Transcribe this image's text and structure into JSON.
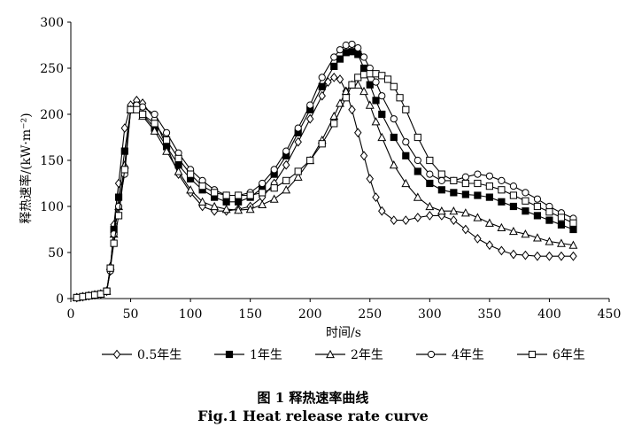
{
  "chart_data": {
    "type": "line",
    "title": "",
    "xlabel": "时间/s",
    "ylabel": "释热速率/(kW·m⁻²)",
    "xlim": [
      0,
      450
    ],
    "ylim": [
      0,
      300
    ],
    "xticks": [
      "0",
      "50",
      "100",
      "150",
      "200",
      "250",
      "300",
      "350",
      "400",
      "450"
    ],
    "yticks": [
      "0",
      "50",
      "100",
      "150",
      "200",
      "250",
      "300"
    ],
    "grid": false,
    "legend_position": "bottom",
    "series": [
      {
        "name": "0.5年生",
        "marker": "diamond",
        "x": [
          5,
          10,
          15,
          20,
          25,
          30,
          33,
          36,
          40,
          45,
          50,
          55,
          60,
          70,
          80,
          90,
          100,
          110,
          120,
          130,
          140,
          150,
          160,
          170,
          180,
          190,
          200,
          210,
          215,
          220,
          225,
          230,
          235,
          240,
          245,
          250,
          255,
          260,
          270,
          280,
          290,
          300,
          310,
          320,
          330,
          340,
          350,
          360,
          370,
          380,
          390,
          400,
          410,
          420
        ],
        "y": [
          1,
          2,
          3,
          4,
          5,
          8,
          30,
          80,
          125,
          185,
          210,
          215,
          212,
          195,
          165,
          135,
          115,
          100,
          95,
          95,
          97,
          100,
          110,
          125,
          145,
          170,
          195,
          220,
          235,
          240,
          238,
          225,
          205,
          180,
          155,
          130,
          110,
          95,
          85,
          85,
          88,
          90,
          90,
          85,
          75,
          65,
          58,
          52,
          48,
          47,
          46,
          46,
          46,
          46
        ]
      },
      {
        "name": "1年生",
        "marker": "square-filled",
        "x": [
          5,
          10,
          15,
          20,
          25,
          30,
          33,
          36,
          40,
          45,
          50,
          55,
          60,
          70,
          80,
          90,
          100,
          110,
          120,
          130,
          140,
          150,
          160,
          170,
          180,
          190,
          200,
          210,
          220,
          225,
          230,
          235,
          240,
          245,
          250,
          255,
          260,
          270,
          280,
          290,
          300,
          310,
          320,
          330,
          340,
          350,
          360,
          370,
          380,
          390,
          400,
          410,
          420
        ],
        "y": [
          1,
          2,
          3,
          4,
          5,
          8,
          33,
          75,
          110,
          160,
          205,
          207,
          200,
          185,
          165,
          145,
          130,
          118,
          110,
          105,
          105,
          110,
          120,
          135,
          155,
          180,
          205,
          230,
          252,
          260,
          267,
          268,
          265,
          250,
          232,
          215,
          200,
          175,
          155,
          138,
          125,
          118,
          115,
          113,
          112,
          110,
          105,
          100,
          95,
          90,
          85,
          80,
          75
        ]
      },
      {
        "name": "2年生",
        "marker": "triangle",
        "x": [
          5,
          10,
          15,
          20,
          25,
          30,
          33,
          36,
          40,
          45,
          50,
          55,
          60,
          70,
          80,
          90,
          100,
          110,
          120,
          130,
          140,
          150,
          160,
          170,
          180,
          190,
          200,
          210,
          220,
          225,
          230,
          235,
          240,
          245,
          250,
          255,
          260,
          270,
          280,
          290,
          300,
          310,
          320,
          330,
          340,
          350,
          360,
          370,
          380,
          390,
          400,
          410,
          420
        ],
        "y": [
          1,
          2,
          3,
          4,
          5,
          8,
          35,
          70,
          100,
          145,
          205,
          206,
          198,
          182,
          160,
          138,
          118,
          105,
          100,
          97,
          96,
          97,
          102,
          108,
          118,
          132,
          150,
          172,
          198,
          212,
          225,
          232,
          232,
          225,
          210,
          192,
          175,
          145,
          125,
          110,
          100,
          95,
          95,
          93,
          88,
          82,
          77,
          73,
          70,
          66,
          62,
          60,
          58
        ]
      },
      {
        "name": "4年生",
        "marker": "circle",
        "x": [
          5,
          10,
          15,
          20,
          25,
          30,
          33,
          36,
          40,
          45,
          50,
          55,
          60,
          70,
          80,
          90,
          100,
          110,
          120,
          130,
          140,
          150,
          160,
          170,
          180,
          190,
          200,
          210,
          220,
          225,
          230,
          235,
          240,
          245,
          250,
          255,
          260,
          270,
          280,
          290,
          300,
          310,
          320,
          330,
          340,
          350,
          360,
          370,
          380,
          390,
          400,
          410,
          420
        ],
        "y": [
          1,
          2,
          3,
          4,
          5,
          8,
          30,
          70,
          100,
          135,
          205,
          210,
          208,
          200,
          180,
          158,
          140,
          128,
          118,
          112,
          112,
          115,
          125,
          140,
          160,
          185,
          210,
          240,
          262,
          270,
          275,
          276,
          272,
          262,
          250,
          235,
          220,
          195,
          170,
          150,
          135,
          128,
          128,
          132,
          135,
          133,
          128,
          122,
          115,
          108,
          100,
          93,
          87
        ]
      },
      {
        "name": "6年生",
        "marker": "square",
        "x": [
          5,
          10,
          15,
          20,
          25,
          30,
          33,
          36,
          40,
          45,
          50,
          55,
          60,
          70,
          80,
          90,
          100,
          110,
          120,
          130,
          140,
          150,
          160,
          170,
          180,
          190,
          200,
          210,
          220,
          230,
          235,
          240,
          245,
          250,
          255,
          260,
          265,
          270,
          275,
          280,
          290,
          300,
          310,
          320,
          330,
          340,
          350,
          360,
          370,
          380,
          390,
          400,
          410,
          420
        ],
        "y": [
          1,
          2,
          3,
          4,
          5,
          8,
          33,
          60,
          90,
          140,
          205,
          205,
          200,
          190,
          172,
          152,
          135,
          122,
          115,
          112,
          112,
          112,
          115,
          120,
          128,
          138,
          150,
          168,
          190,
          218,
          232,
          240,
          243,
          244,
          244,
          242,
          238,
          230,
          218,
          205,
          175,
          150,
          135,
          128,
          125,
          125,
          122,
          118,
          112,
          106,
          100,
          94,
          88,
          82
        ]
      }
    ],
    "captions": {
      "cn": "图 1    释热速率曲线",
      "en": "Fig.1    Heat release rate curve"
    }
  }
}
